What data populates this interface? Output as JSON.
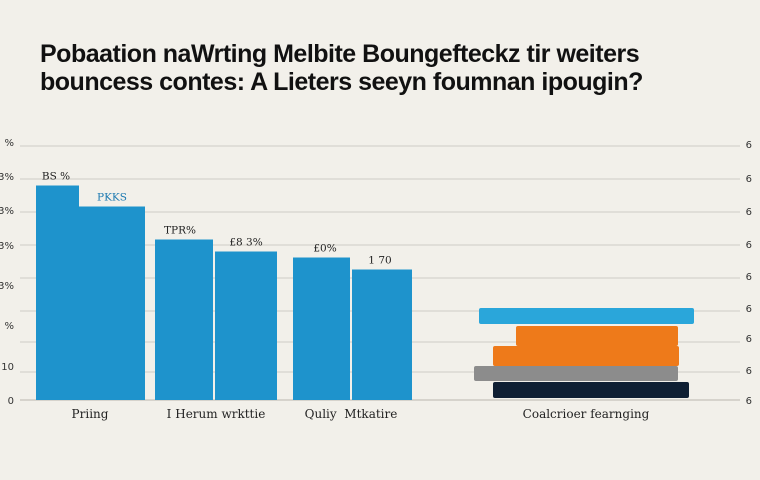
{
  "title_lines": [
    "Pobaation naWrting Melbite Boungefteckz tir weiters",
    "bouncess contes: A Lieters seeyn foumnan ipougin?"
  ],
  "colors": {
    "background": "#f2f0ea",
    "bar_blue": "#1e93cc",
    "bar_cyan": "#2aa6da",
    "bar_orange": "#ee7a1a",
    "bar_gray": "#8c8c8c",
    "bar_navy": "#0f1f33",
    "grid": "#cfcdc6"
  },
  "chart_data": {
    "type": "bar",
    "title": "Pobaation naWrting Melbite Boungefteckz tir weiters bouncess contes: A Lieters seeyn foumnan ipougin?",
    "grid": true,
    "ylim": [
      0,
      80
    ],
    "y_ticks_left": [
      "0",
      "10",
      "%",
      "3%",
      "3%",
      "3%",
      "3%",
      "%"
    ],
    "y_ticks_right": [
      "6",
      "6",
      "6",
      "6",
      "6",
      "6",
      "6",
      "6",
      "6"
    ],
    "categories": [
      "Priing",
      "I Herum wrkttie",
      "Quliy  Mtkatire",
      "Coalcrioer fearnging"
    ],
    "bar_groups": [
      {
        "category": "Priing",
        "bars": [
          {
            "value": 71.5,
            "label": "BS %",
            "color": "#1e93cc"
          },
          {
            "value": 64.5,
            "label": "PKKS",
            "color": "#1e93cc"
          }
        ]
      },
      {
        "category": "I Herum wrkttie",
        "bars": [
          {
            "value": 53.5,
            "label": "TPR%",
            "color": "#1e93cc"
          },
          {
            "value": 49.5,
            "label": "£8 3%",
            "color": "#1e93cc"
          }
        ]
      },
      {
        "category": "Quliy  Mtkatire",
        "bars": [
          {
            "value": 47.5,
            "label": "£0%",
            "color": "#1e93cc"
          },
          {
            "value": 43.5,
            "label": "1 70",
            "color": "#1e93cc"
          }
        ]
      }
    ],
    "stacked_group": {
      "category": "Coalcrioer fearnging",
      "layers": [
        {
          "value": 1,
          "color": "#0f1f33"
        },
        {
          "value": 1,
          "color": "#8c8c8c"
        },
        {
          "value": 1,
          "color": "#ee7a1a"
        },
        {
          "value": 1,
          "color": "#ee7a1a"
        },
        {
          "value": 1,
          "color": "#2aa6da"
        }
      ]
    }
  }
}
